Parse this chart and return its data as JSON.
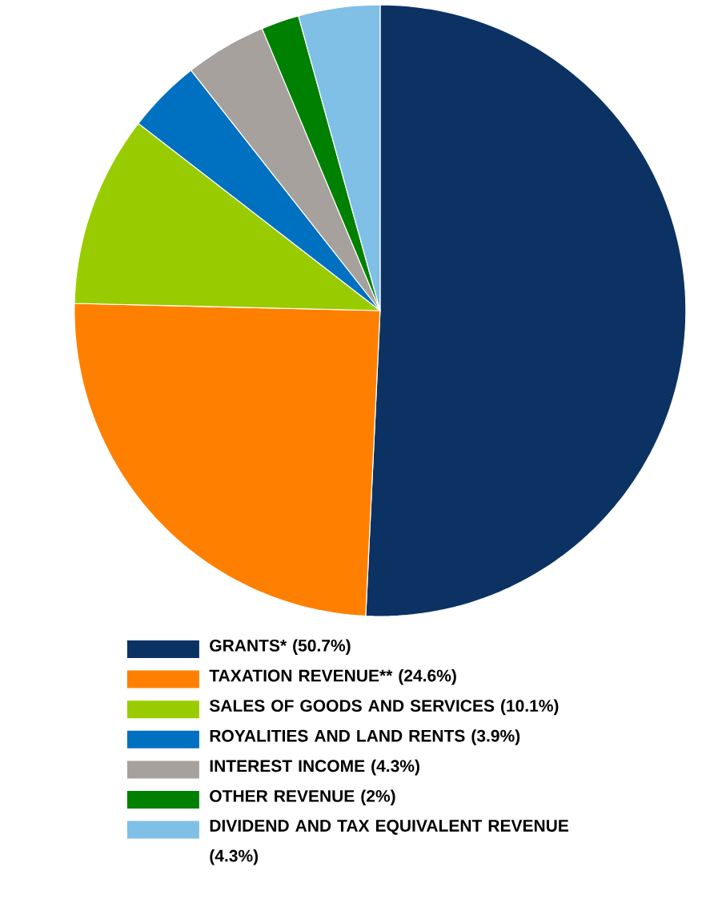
{
  "chart_data": {
    "type": "pie",
    "categories": [
      "GRANTS* (50.7%)",
      "TAXATION REVENUE** (24.6%)",
      "SALES OF GOODS AND SERVICES (10.1%)",
      "ROYALITIES AND LAND RENTS (3.9%)",
      "INTEREST INCOME (4.3%)",
      "OTHER REVENUE (2%)",
      "DIVIDEND AND TAX EQUIVALENT REVENUE (4.3%)"
    ],
    "values": [
      50.7,
      24.6,
      10.1,
      3.9,
      4.3,
      2,
      4.3
    ],
    "colors": [
      "#0c3264",
      "#ff8000",
      "#99cc00",
      "#0070c0",
      "#a6a19c",
      "#008000",
      "#80bfe6"
    ],
    "legend": "bottom"
  }
}
